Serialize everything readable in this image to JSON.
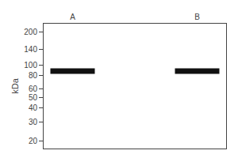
{
  "chart_data": {
    "type": "scatter",
    "categories": [
      "A",
      "B"
    ],
    "values": [
      88,
      88
    ],
    "color": "#111111",
    "marker": "dash",
    "ylabel": "kDa",
    "log": "y",
    "ylim": [
      17,
      240
    ],
    "yticks": [
      20,
      30,
      40,
      50,
      60,
      80,
      100,
      140,
      200
    ],
    "grid": false
  }
}
